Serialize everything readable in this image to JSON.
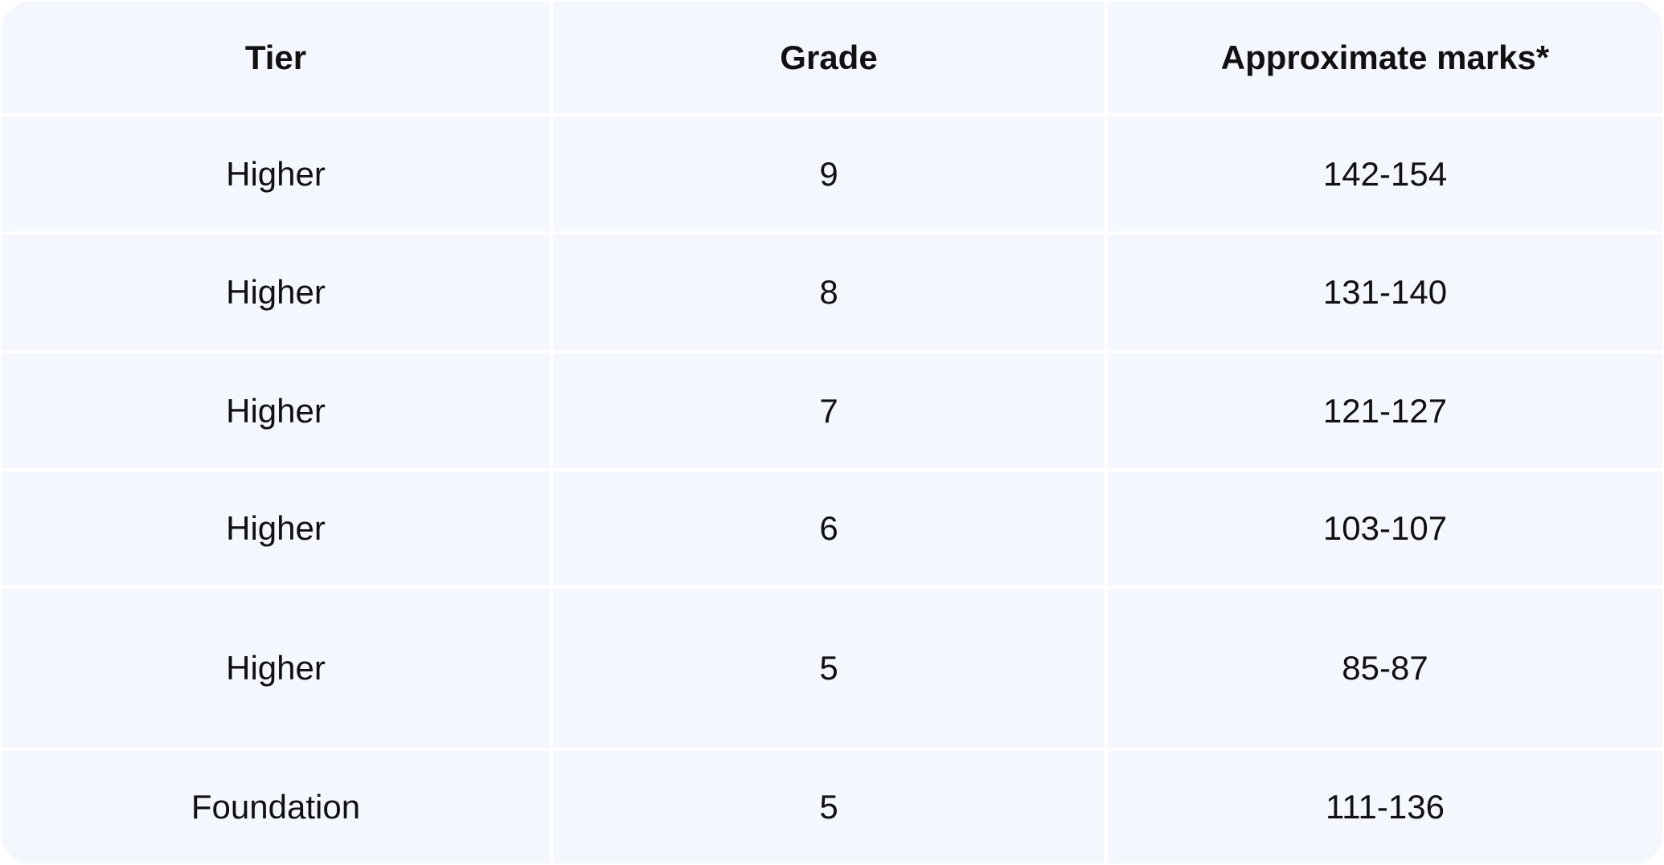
{
  "table": {
    "headers": [
      "Tier",
      "Grade",
      "Approximate marks*"
    ],
    "rows": [
      [
        "Higher",
        "9",
        "142-154"
      ],
      [
        "Higher",
        "8",
        "131-140"
      ],
      [
        "Higher",
        "7",
        "121-127"
      ],
      [
        "Higher",
        "6",
        "103-107"
      ],
      [
        "Higher",
        "5",
        "85-87"
      ],
      [
        "Foundation",
        "5",
        "111-136"
      ]
    ]
  },
  "colors": {
    "cell_background": "#f4f7fd",
    "grid_lines": "#ffffff",
    "text": "#111111"
  }
}
